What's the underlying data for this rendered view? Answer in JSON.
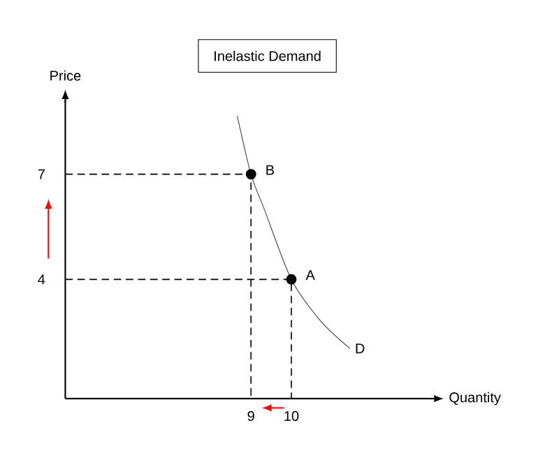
{
  "chart_data": {
    "type": "line",
    "title": "Inelastic Demand",
    "xlabel": "Quantity",
    "ylabel": "Price",
    "xlim": [
      4.4,
      13.5
    ],
    "ylim": [
      0.6,
      9.1
    ],
    "xticks": [
      9,
      10
    ],
    "yticks": [
      4,
      7
    ],
    "grid": false,
    "series": [
      {
        "name": "D",
        "color": "#404040",
        "line_style": "solid",
        "marker": "none",
        "x": [
          8.66,
          9,
          9.34,
          10,
          10.72,
          11.45
        ],
        "values": [
          8.66,
          7,
          5.97,
          4,
          2.82,
          2.03
        ]
      },
      {
        "color": "#000000",
        "line_style": "dashed",
        "marker": "none",
        "x": [
          4.4,
          9,
          9
        ],
        "values": [
          7,
          7,
          0.6
        ]
      },
      {
        "color": "#000000",
        "line_style": "dashed",
        "marker": "none",
        "x": [
          4.4,
          10,
          10
        ],
        "values": [
          4,
          4,
          0.6
        ]
      },
      {
        "type": "scatter",
        "color": "#000000",
        "marker": "circle",
        "x": [
          9,
          10
        ],
        "values": [
          7,
          4
        ]
      }
    ],
    "annotations": [
      {
        "text": "B",
        "x": 9,
        "y": 7
      },
      {
        "text": "A",
        "x": 10,
        "y": 4
      }
    ]
  }
}
